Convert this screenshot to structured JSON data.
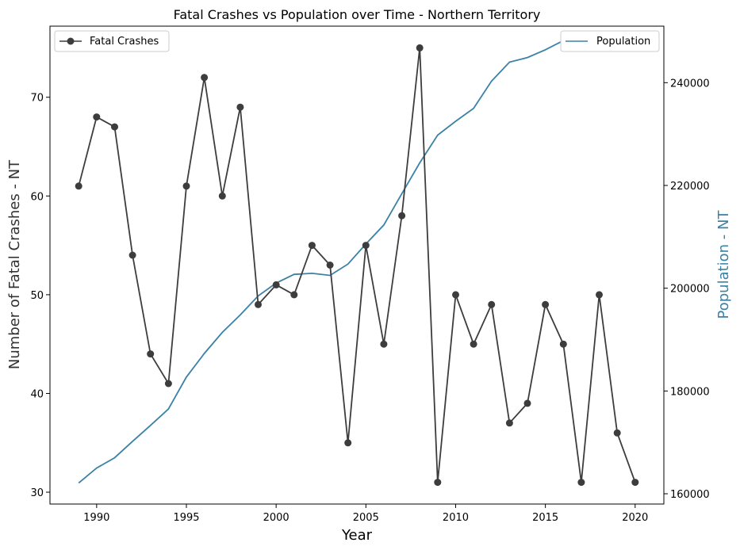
{
  "chart_data": {
    "type": "line",
    "title": "Fatal Crashes vs Population over Time - Northern Territory",
    "xlabel": "Year",
    "ylabel_left": "Number of Fatal Crashes - NT",
    "ylabel_right": "Population - NT",
    "x": [
      1989,
      1990,
      1991,
      1992,
      1993,
      1994,
      1995,
      1996,
      1997,
      1998,
      1999,
      2000,
      2001,
      2002,
      2003,
      2004,
      2005,
      2006,
      2007,
      2008,
      2009,
      2010,
      2011,
      2012,
      2013,
      2014,
      2015,
      2016,
      2017,
      2018,
      2019,
      2020
    ],
    "xlim": [
      1987.4,
      2021.6
    ],
    "x_ticks": [
      1990,
      1995,
      2000,
      2005,
      2010,
      2015,
      2020
    ],
    "y_left_lim": [
      28.8,
      77.2
    ],
    "y_left_ticks": [
      30,
      40,
      50,
      60,
      70
    ],
    "y_right_lim": [
      158000,
      251000
    ],
    "y_right_ticks": [
      160000,
      180000,
      200000,
      220000,
      240000
    ],
    "series": [
      {
        "name": "Fatal Crashes",
        "axis": "left",
        "color": "#3d3d3d",
        "marker": "circle",
        "values": [
          61,
          68,
          67,
          54,
          44,
          41,
          61,
          72,
          60,
          69,
          49,
          51,
          50,
          55,
          53,
          35,
          55,
          45,
          58,
          75,
          31,
          50,
          45,
          49,
          37,
          39,
          49,
          45,
          31,
          50,
          36,
          31
        ]
      },
      {
        "name": "Population",
        "axis": "right",
        "color": "#3a82a6",
        "marker": "none",
        "values": [
          162100,
          165000,
          167000,
          170200,
          173300,
          176500,
          182700,
          187300,
          191400,
          194800,
          198500,
          201000,
          202700,
          202900,
          202500,
          204700,
          208600,
          212300,
          218400,
          224400,
          229800,
          232500,
          235000,
          240300,
          244000,
          244900,
          246400,
          248200,
          249100,
          248600,
          247500,
          247800
        ]
      }
    ],
    "legend_left_position": "upper-left",
    "legend_right_position": "upper-right",
    "grid": false
  }
}
